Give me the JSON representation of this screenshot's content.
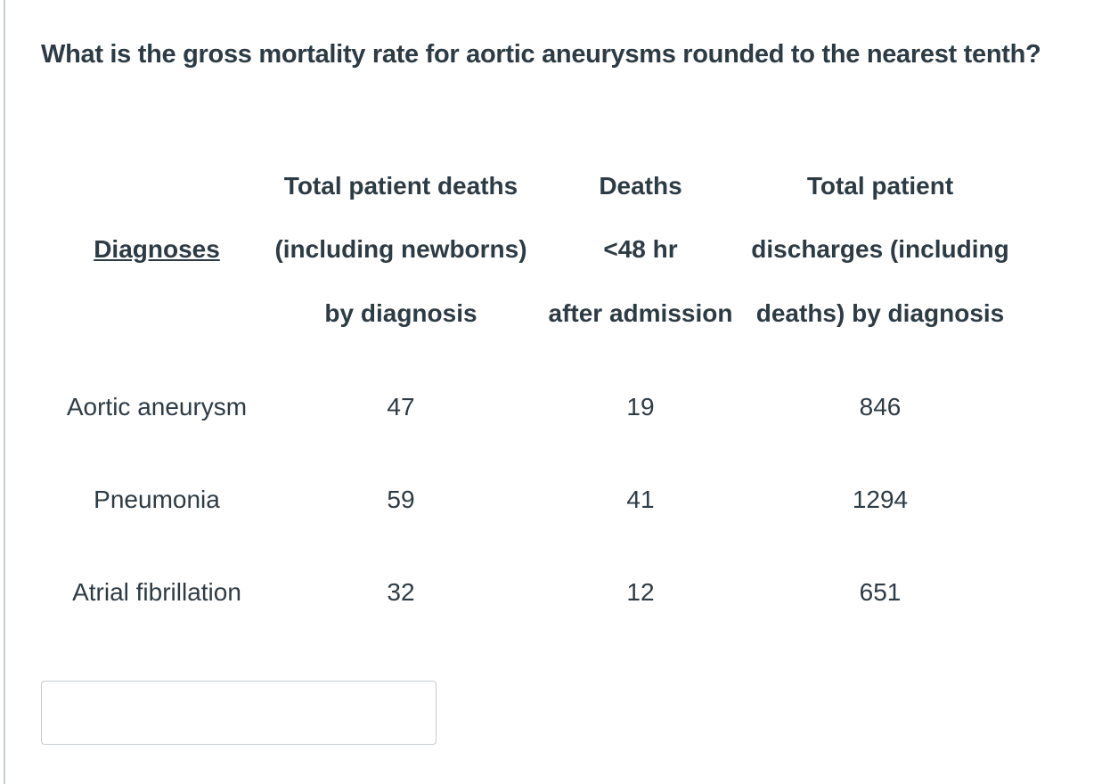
{
  "question": {
    "text": "What is the gross mortality rate for aortic aneurysms rounded to the nearest tenth?"
  },
  "table": {
    "headers": {
      "diagnoses": "Diagnoses",
      "total_deaths": [
        "Total patient deaths",
        "(including newborns)",
        "by diagnosis"
      ],
      "deaths_48": [
        "Deaths",
        "<48 hr",
        "after admission"
      ],
      "discharges": [
        "Total patient",
        "discharges (including",
        "deaths) by diagnosis"
      ]
    },
    "rows": [
      {
        "diagnosis": "Aortic aneurysm",
        "total_deaths": "47",
        "deaths_48": "19",
        "discharges": "846"
      },
      {
        "diagnosis": "Pneumonia",
        "total_deaths": "59",
        "deaths_48": "41",
        "discharges": "1294"
      },
      {
        "diagnosis": "Atrial fibrillation",
        "total_deaths": "32",
        "deaths_48": "12",
        "discharges": "651"
      }
    ]
  },
  "answer": {
    "value": "",
    "placeholder": ""
  },
  "colors": {
    "text": "#2d3b45",
    "border": "#c7cdd1"
  }
}
